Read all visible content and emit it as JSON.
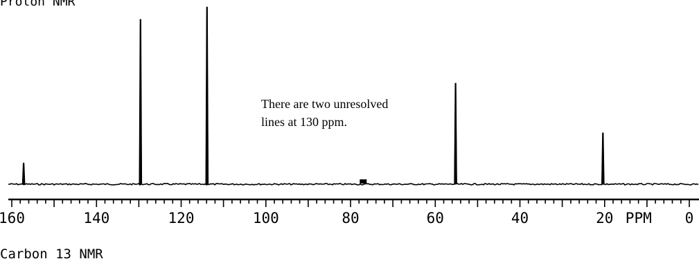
{
  "header": {
    "title": "Proton NMR"
  },
  "footer": {
    "title": "Carbon 13 NMR"
  },
  "annotation": {
    "line1": "There are two unresolved",
    "line2": "lines at 130 ppm."
  },
  "chart_data": {
    "type": "line",
    "x_axis": {
      "range": [
        161,
        -1
      ],
      "reversed": true,
      "major_ticks": [
        160,
        140,
        120,
        100,
        80,
        60,
        40,
        20,
        0
      ],
      "tick_labels": [
        "160",
        "140",
        "120",
        "100",
        "80",
        "60",
        "40",
        "20",
        "0"
      ],
      "unit_label": "PPM",
      "minor_tick_step": 2
    },
    "peaks": [
      {
        "ppm": 157.2,
        "intensity": 0.12
      },
      {
        "ppm": 129.6,
        "intensity": 0.93
      },
      {
        "ppm": 113.9,
        "intensity": 1.0
      },
      {
        "ppm": 77.0,
        "intensity": 0.03
      },
      {
        "ppm": 55.2,
        "intensity": 0.57
      },
      {
        "ppm": 20.4,
        "intensity": 0.29
      }
    ],
    "grid": false,
    "line_color": "#000000"
  }
}
